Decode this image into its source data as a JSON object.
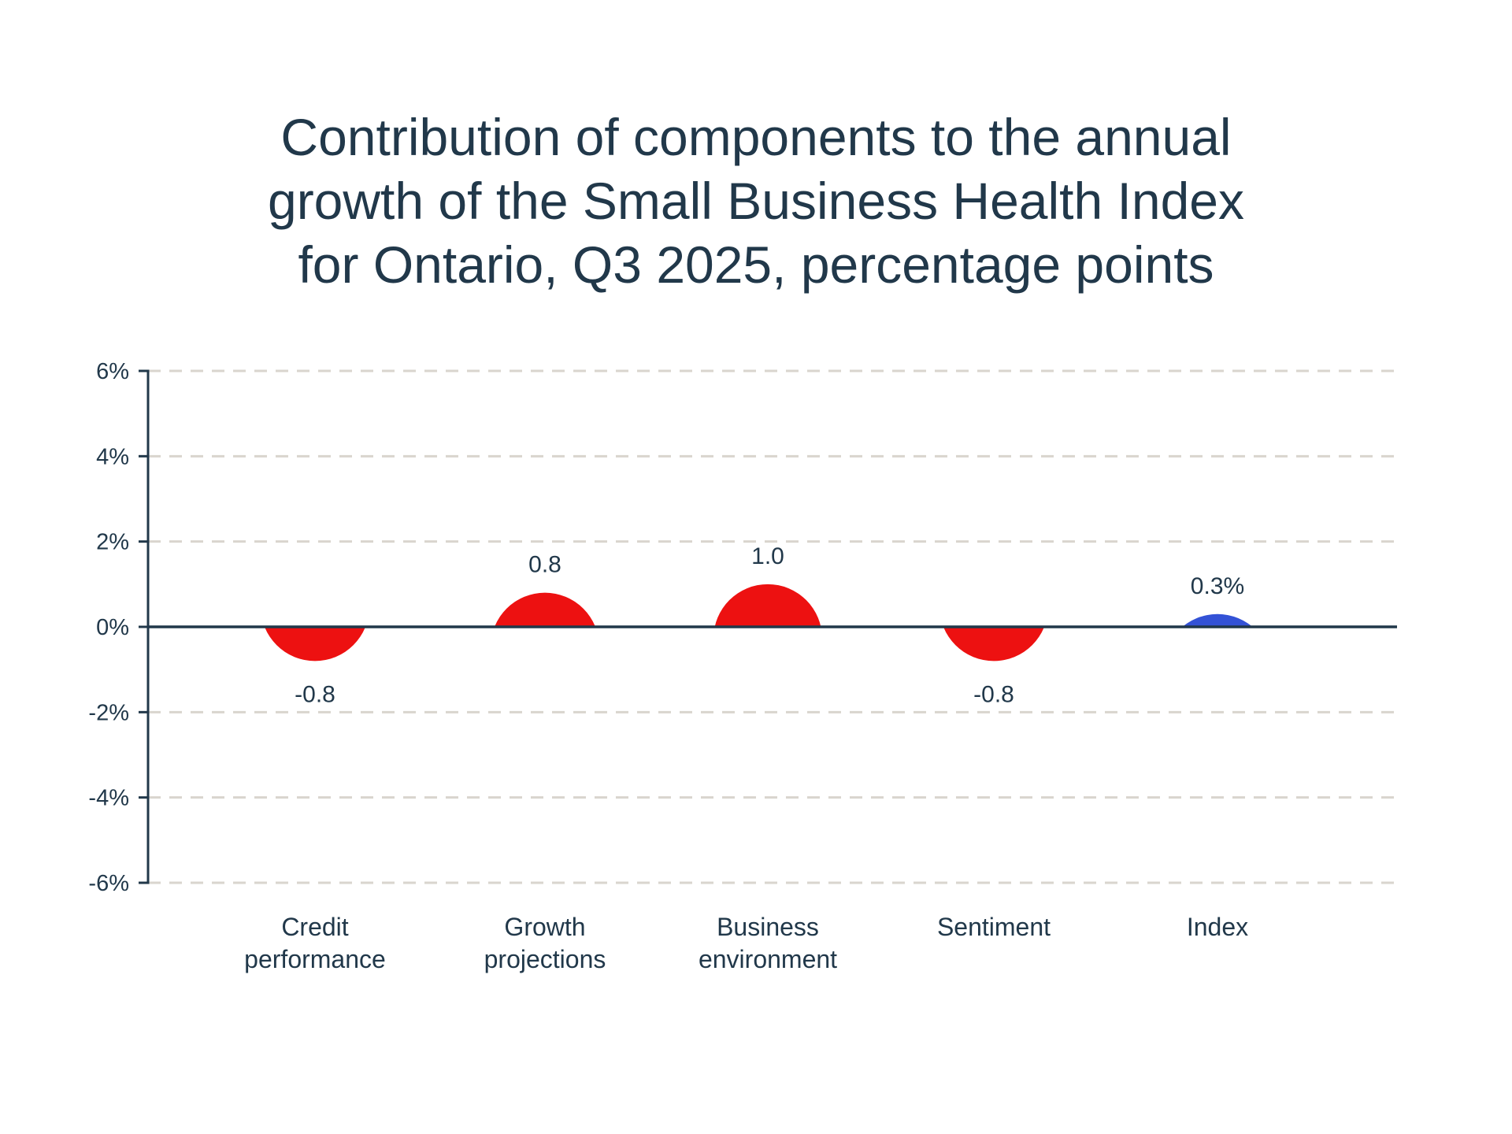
{
  "page": {
    "background": "#FFFFFF"
  },
  "title": {
    "lines": [
      "Contribution of components to the annual",
      "growth of the Small Business Health Index",
      "for Ontario, Q3 2025, percentage points"
    ],
    "color": "#21384A"
  },
  "chart_data": {
    "type": "bar",
    "style": "semicircle_bubble_contribution",
    "title": "Contribution of components to the annual growth of the Small Business Health Index for Ontario, Q3 2025, percentage points",
    "unit": "percentage points",
    "categories": [
      "Credit performance",
      "Growth projections",
      "Business environment",
      "Sentiment",
      "Index"
    ],
    "category_lines": [
      [
        "Credit",
        "performance"
      ],
      [
        "Growth",
        "projections"
      ],
      [
        "Business",
        "environment"
      ],
      [
        "Sentiment"
      ],
      [
        "Index"
      ]
    ],
    "values": [
      -0.8,
      0.8,
      1.0,
      -0.8,
      0.3
    ],
    "value_labels": [
      "-0.8",
      "0.8",
      "1.0",
      "-0.8",
      "0.3%"
    ],
    "series_colors": [
      "#ED1111",
      "#ED1111",
      "#ED1111",
      "#ED1111",
      "#3352D6"
    ],
    "xlabel": "",
    "ylabel": "",
    "ylim": [
      -6,
      6
    ],
    "ytick_values": [
      6,
      4,
      2,
      0,
      -2,
      -4,
      -6
    ],
    "ytick_labels": [
      "6%",
      "4%",
      "2%",
      "0%",
      "-2%",
      "-4%",
      "-6%"
    ],
    "grid": "horizontal dashed",
    "legend": "none",
    "colors": {
      "text": "#21384A",
      "axis": "#21384A",
      "grid": "#D9D5CE",
      "component": "#ED1111",
      "index": "#3352D6"
    }
  }
}
